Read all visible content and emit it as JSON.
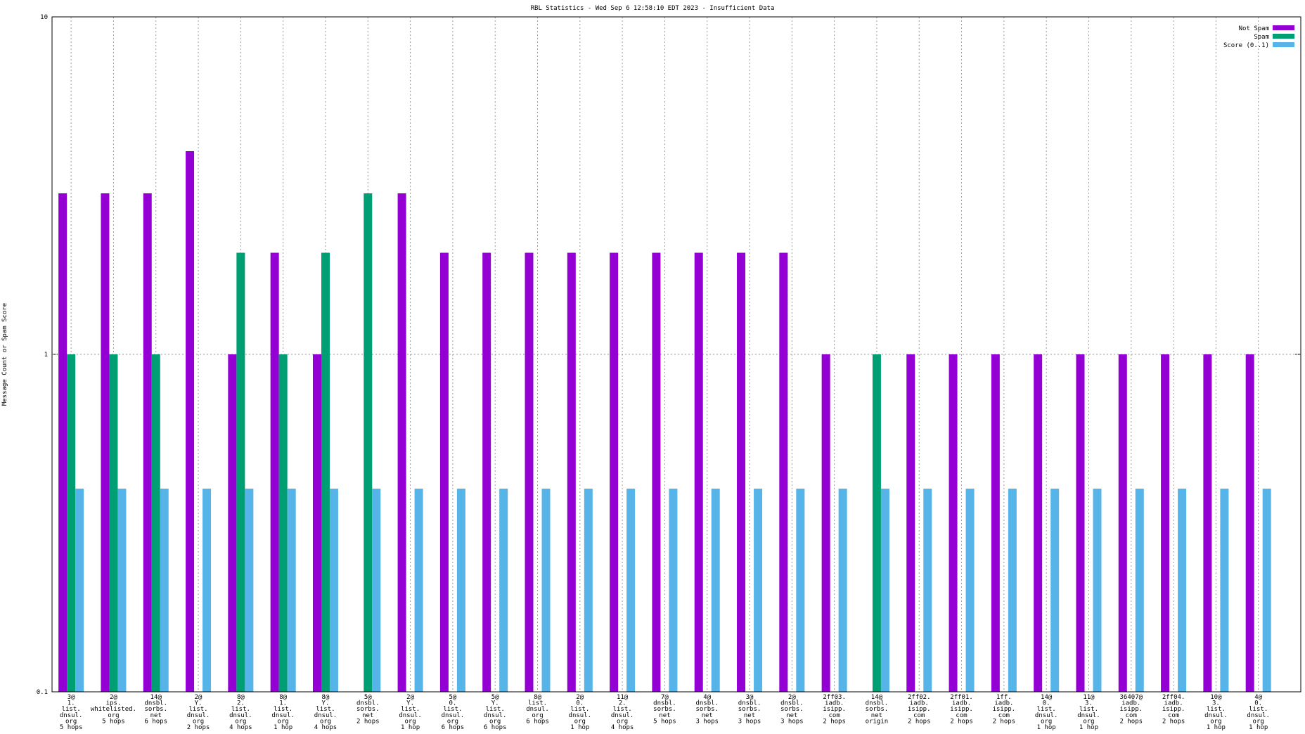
{
  "chart_data": {
    "type": "bar",
    "title": "RBL Statistics - Wed Sep  6 12:58:10 EDT 2023 - Insufficient Data",
    "y_label": "Message Count or Spam Score",
    "log_y": true,
    "grid": true,
    "legend": "top-right",
    "ylim": [
      0.1,
      10
    ],
    "yticks": [
      0.1,
      1,
      10
    ],
    "categories": [
      [
        "3@",
        "1.",
        "list.",
        "dnsul.",
        "org",
        "5 hops"
      ],
      [
        "2@",
        "ips.",
        "whitelisted.",
        "org",
        "5 hops"
      ],
      [
        "14@",
        "dnsbl.",
        "sorbs.",
        "net",
        "6 hops"
      ],
      [
        "2@",
        "Y.",
        "list.",
        "dnsul.",
        "org",
        "2 hops"
      ],
      [
        "8@",
        "2.",
        "list.",
        "dnsul.",
        "org",
        "4 hops"
      ],
      [
        "8@",
        "1.",
        "list.",
        "dnsul.",
        "org",
        "1 hop"
      ],
      [
        "8@",
        "Y.",
        "list.",
        "dnsul.",
        "org",
        "4 hops"
      ],
      [
        "5@",
        "dnsbl.",
        "sorbs.",
        "net",
        "2 hops"
      ],
      [
        "2@",
        "Y.",
        "list.",
        "dnsul.",
        "org",
        "1 hop"
      ],
      [
        "5@",
        "0.",
        "list.",
        "dnsul.",
        "org",
        "6 hops"
      ],
      [
        "5@",
        "Y.",
        "list.",
        "dnsul.",
        "org",
        "6 hops"
      ],
      [
        "8@",
        "list.",
        "dnsul.",
        "org",
        "6 hops"
      ],
      [
        "2@",
        "0.",
        "list.",
        "dnsul.",
        "org",
        "1 hop"
      ],
      [
        "11@",
        "2.",
        "list.",
        "dnsul.",
        "org",
        "4 hops"
      ],
      [
        "7@",
        "dnsbl.",
        "sorbs.",
        "net",
        "5 hops"
      ],
      [
        "4@",
        "dnsbl.",
        "sorbs.",
        "net",
        "3 hops"
      ],
      [
        "3@",
        "dnsbl.",
        "sorbs.",
        "net",
        "3 hops"
      ],
      [
        "2@",
        "dnsbl.",
        "sorbs.",
        "net",
        "3 hops"
      ],
      [
        "2ff03.",
        "iadb.",
        "isipp.",
        "com",
        "2 hops"
      ],
      [
        "14@",
        "dnsbl.",
        "sorbs.",
        "net",
        "origin"
      ],
      [
        "2ff02.",
        "iadb.",
        "isipp.",
        "com",
        "2 hops"
      ],
      [
        "2ff01.",
        "iadb.",
        "isipp.",
        "com",
        "2 hops"
      ],
      [
        "1ff.",
        "iadb.",
        "isipp.",
        "com",
        "2 hops"
      ],
      [
        "14@",
        "0.",
        "list.",
        "dnsul.",
        "org",
        "1 hop"
      ],
      [
        "11@",
        "3.",
        "list.",
        "dnsul.",
        "org",
        "1 hop"
      ],
      [
        "36407@",
        "iadb.",
        "isipp.",
        "com",
        "2 hops"
      ],
      [
        "2ff04.",
        "iadb.",
        "isipp.",
        "com",
        "2 hops"
      ],
      [
        "10@",
        "3.",
        "list.",
        "dnsul.",
        "org",
        "1 hop"
      ],
      [
        "4@",
        "0.",
        "list.",
        "dnsul.",
        "org",
        "1 hop"
      ]
    ],
    "series": [
      {
        "name": "Not Spam",
        "color": "#9400d3",
        "values": [
          3,
          3,
          3,
          4,
          1,
          2,
          1,
          null,
          3,
          2,
          2,
          2,
          2,
          2,
          2,
          2,
          2,
          2,
          1,
          null,
          1,
          1,
          1,
          1,
          1,
          1,
          1,
          1,
          1
        ]
      },
      {
        "name": "Spam",
        "color": "#009e73",
        "values": [
          1,
          1,
          1,
          null,
          2,
          1,
          2,
          3,
          null,
          null,
          null,
          null,
          null,
          null,
          null,
          null,
          null,
          null,
          null,
          1,
          null,
          null,
          null,
          null,
          null,
          null,
          null,
          null,
          null
        ]
      },
      {
        "name": "Score (0..1)",
        "color": "#56b4e9",
        "values": [
          0.4,
          0.4,
          0.4,
          0.4,
          0.4,
          0.4,
          0.4,
          0.4,
          0.4,
          0.4,
          0.4,
          0.4,
          0.4,
          0.4,
          0.4,
          0.4,
          0.4,
          0.4,
          0.4,
          0.4,
          0.4,
          0.4,
          0.4,
          0.4,
          0.4,
          0.4,
          0.4,
          0.4,
          0.4
        ]
      }
    ]
  }
}
